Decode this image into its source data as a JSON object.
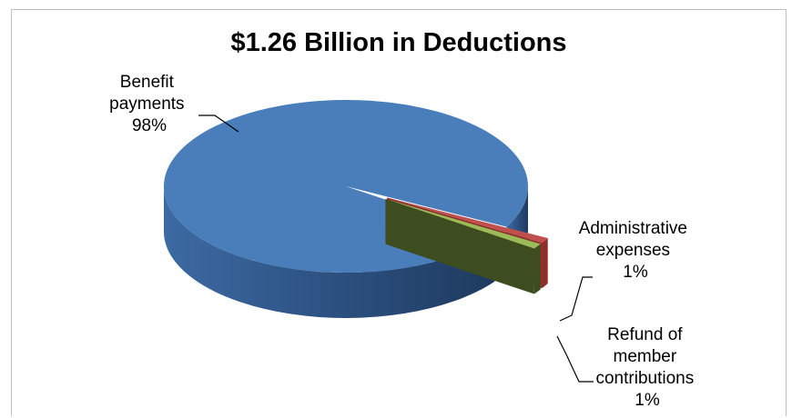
{
  "chart_data": {
    "type": "pie",
    "style": "3d-exploded",
    "title": "$1.26 Billion in Deductions",
    "slices": [
      {
        "label_lines": [
          "Benefit",
          "payments",
          "98%"
        ],
        "value": 98,
        "color": "#4a7ebb"
      },
      {
        "label_lines": [
          "Administrative",
          "expenses",
          "1%"
        ],
        "value": 1,
        "color": "#c0504d"
      },
      {
        "label_lines": [
          "Refund of",
          "member",
          "contributions",
          "1%"
        ],
        "value": 1,
        "color": "#9bbb59"
      }
    ],
    "legend": "none",
    "grid": false
  }
}
